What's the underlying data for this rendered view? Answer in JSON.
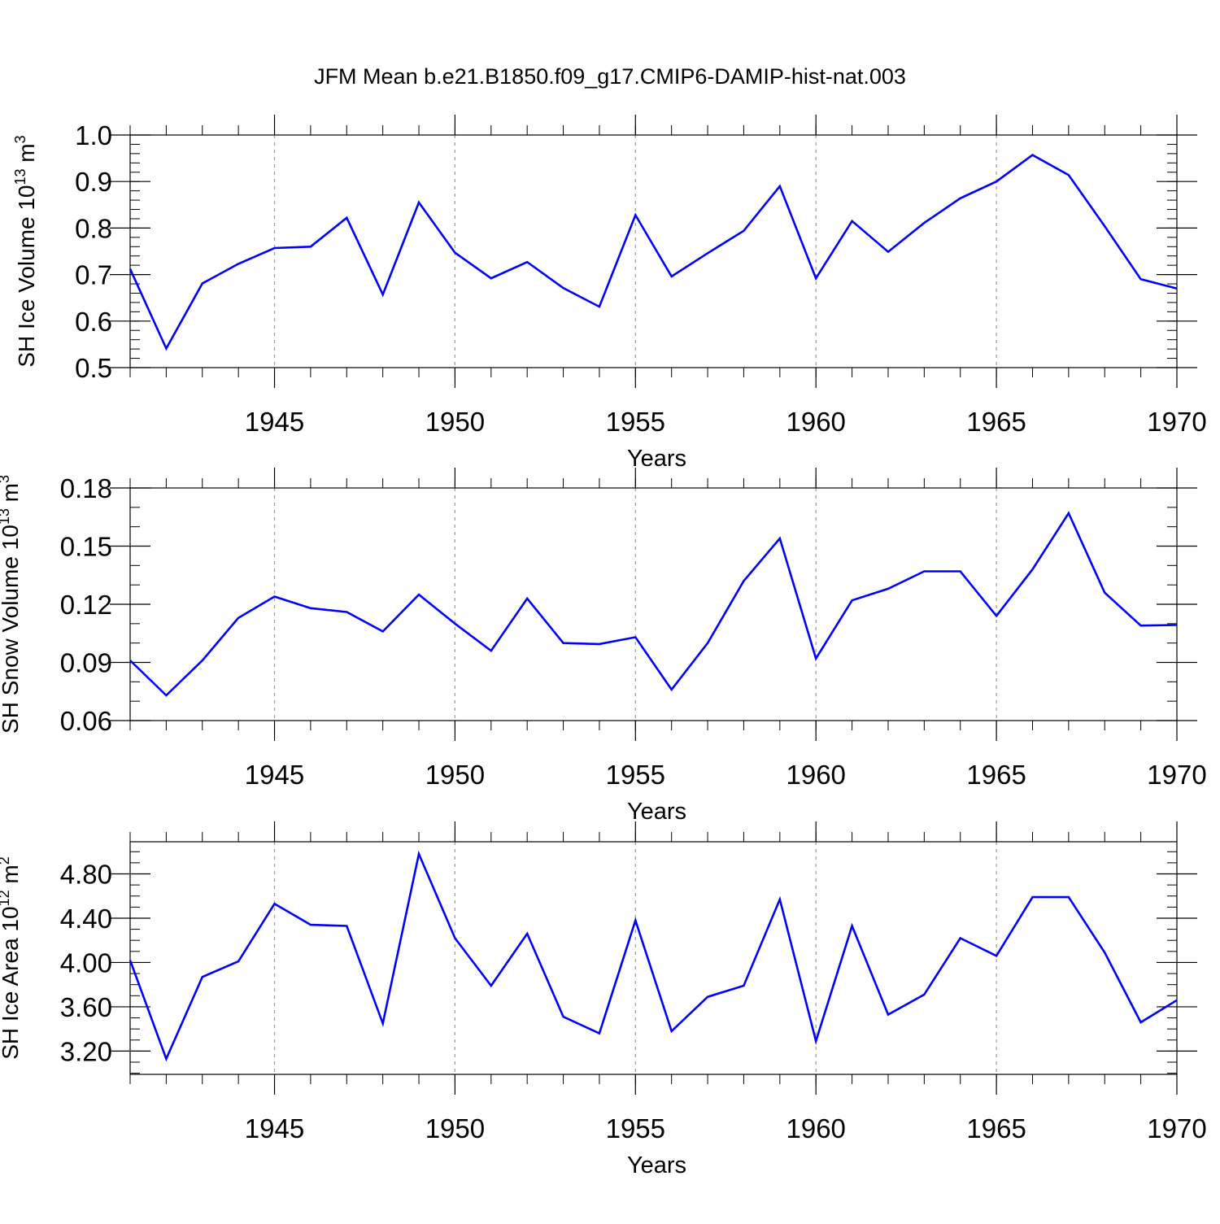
{
  "figure_title": "JFM Mean b.e21.B1850.f09_g17.CMIP6-DAMIP-hist-nat.003",
  "line_color": "#0000ff",
  "chart_data": [
    {
      "type": "line",
      "title": "JFM Mean b.e21.B1850.f09_g17.CMIP6-DAMIP-hist-nat.003",
      "xlabel": "Years",
      "ylabel_parts": {
        "main": "SH Ice Volume 10",
        "exp": "13",
        "unit": " m",
        "unit_exp": "3"
      },
      "xlim": [
        1941,
        1970
      ],
      "ylim": [
        0.5,
        1.0
      ],
      "xticks": [
        1945,
        1950,
        1955,
        1960,
        1965,
        1970
      ],
      "xtick_labels": [
        "1945",
        "1950",
        "1955",
        "1960",
        "1965",
        "1970"
      ],
      "yticks": [
        0.5,
        0.6,
        0.7,
        0.8,
        0.9,
        1.0
      ],
      "ytick_labels": [
        "0.5",
        "0.6",
        "0.7",
        "0.8",
        "0.9",
        "1.0"
      ],
      "yminor_step": 0.02,
      "grid": "vertical dashed at major x ticks",
      "series": [
        {
          "name": "SH Ice Volume",
          "x": [
            1941,
            1942,
            1943,
            1944,
            1945,
            1946,
            1947,
            1948,
            1949,
            1950,
            1951,
            1952,
            1953,
            1954,
            1955,
            1956,
            1957,
            1958,
            1959,
            1960,
            1961,
            1962,
            1963,
            1964,
            1965,
            1966,
            1967,
            1968,
            1969,
            1970
          ],
          "values": [
            0.712,
            0.541,
            0.681,
            0.723,
            0.757,
            0.76,
            0.822,
            0.657,
            0.855,
            0.747,
            0.692,
            0.727,
            0.671,
            0.631,
            0.828,
            0.696,
            0.746,
            0.794,
            0.89,
            0.692,
            0.815,
            0.749,
            0.811,
            0.864,
            0.9,
            0.957,
            0.914,
            0.804,
            0.69,
            0.67
          ]
        }
      ]
    },
    {
      "type": "line",
      "xlabel": "Years",
      "ylabel_parts": {
        "main": "SH Snow Volume 10",
        "exp": "13",
        "unit": " m",
        "unit_exp": "3"
      },
      "xlim": [
        1941,
        1970
      ],
      "ylim": [
        0.06,
        0.18
      ],
      "xticks": [
        1945,
        1950,
        1955,
        1960,
        1965,
        1970
      ],
      "xtick_labels": [
        "1945",
        "1950",
        "1955",
        "1960",
        "1965",
        "1970"
      ],
      "yticks": [
        0.06,
        0.09,
        0.12,
        0.15,
        0.18
      ],
      "ytick_labels": [
        "0.06",
        "0.09",
        "0.12",
        "0.15",
        "0.18"
      ],
      "yminor_step": 0.01,
      "grid": "vertical dashed at major x ticks",
      "series": [
        {
          "name": "SH Snow Volume",
          "x": [
            1941,
            1942,
            1943,
            1944,
            1945,
            1946,
            1947,
            1948,
            1949,
            1950,
            1951,
            1952,
            1953,
            1954,
            1955,
            1956,
            1957,
            1958,
            1959,
            1960,
            1961,
            1962,
            1963,
            1964,
            1965,
            1966,
            1967,
            1968,
            1969,
            1970
          ],
          "values": [
            0.091,
            0.073,
            0.091,
            0.113,
            0.124,
            0.118,
            0.116,
            0.106,
            0.125,
            0.11,
            0.096,
            0.123,
            0.1,
            0.0995,
            0.103,
            0.076,
            0.1,
            0.132,
            0.154,
            0.092,
            0.122,
            0.128,
            0.137,
            0.137,
            0.114,
            0.138,
            0.167,
            0.126,
            0.109,
            0.1093
          ]
        }
      ]
    },
    {
      "type": "line",
      "xlabel": "Years",
      "ylabel_parts": {
        "main": "SH Ice Area 10",
        "exp": "12",
        "unit": " m",
        "unit_exp": "2"
      },
      "xlim": [
        1941,
        1970
      ],
      "ylim": [
        2.99,
        5.09
      ],
      "xticks": [
        1945,
        1950,
        1955,
        1960,
        1965,
        1970
      ],
      "xtick_labels": [
        "1945",
        "1950",
        "1955",
        "1960",
        "1965",
        "1970"
      ],
      "yticks": [
        3.2,
        3.6,
        4.0,
        4.4,
        4.8
      ],
      "ytick_labels": [
        "3.20",
        "3.60",
        "4.00",
        "4.40",
        "4.80"
      ],
      "yminor_step": 0.1,
      "grid": "vertical dashed at major x ticks",
      "series": [
        {
          "name": "SH Ice Area",
          "x": [
            1941,
            1942,
            1943,
            1944,
            1945,
            1946,
            1947,
            1948,
            1949,
            1950,
            1951,
            1952,
            1953,
            1954,
            1955,
            1956,
            1957,
            1958,
            1959,
            1960,
            1961,
            1962,
            1963,
            1964,
            1965,
            1966,
            1967,
            1968,
            1969,
            1970
          ],
          "values": [
            4.02,
            3.13,
            3.87,
            4.01,
            4.53,
            4.34,
            4.33,
            3.45,
            4.98,
            4.22,
            3.79,
            4.26,
            3.51,
            3.36,
            4.38,
            3.38,
            3.69,
            3.79,
            4.57,
            3.29,
            4.33,
            3.53,
            3.71,
            4.22,
            4.06,
            4.59,
            4.59,
            4.09,
            3.46,
            3.66
          ]
        }
      ]
    }
  ]
}
